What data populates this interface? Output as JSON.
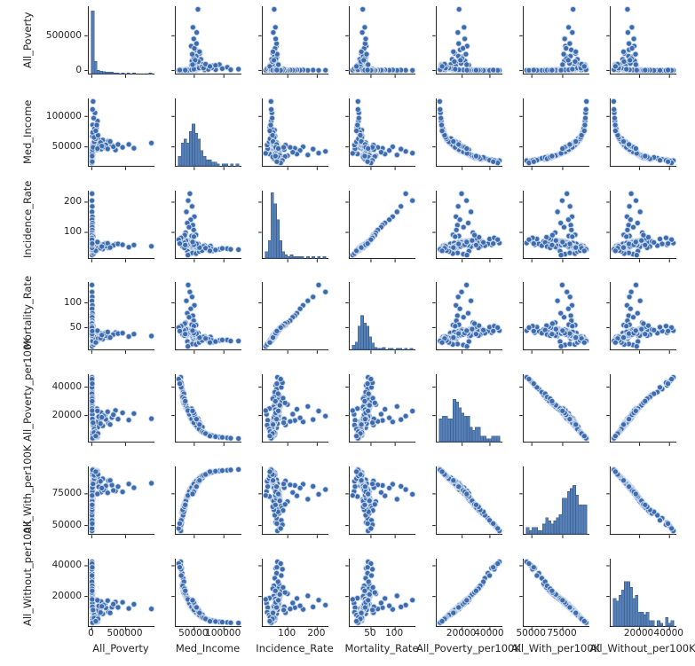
{
  "figure": {
    "background": "#ffffff",
    "kind": "seaborn pairplot"
  },
  "chart_data": {
    "type": "scatter",
    "subtype": "pairplot-matrix",
    "title": "",
    "diagonal": "histogram",
    "grid": "off",
    "legend": "none",
    "variables": [
      "All_Poverty",
      "Med_Income",
      "Incidence_Rate",
      "Mortality_Rate",
      "All_Poverty_per100K",
      "All_With_per100K",
      "All_Without_per100K"
    ],
    "axes": [
      {
        "name": "All_Poverty",
        "min": -45000,
        "max": 927000,
        "ticks": [
          0,
          500000
        ],
        "tick_labels": [
          "0",
          "500000"
        ]
      },
      {
        "name": "Med_Income",
        "min": 18800,
        "max": 129600,
        "ticks": [
          50000,
          100000
        ],
        "tick_labels": [
          "50000",
          "100000"
        ]
      },
      {
        "name": "Incidence_Rate",
        "min": 15,
        "max": 238,
        "ticks": [
          100,
          200
        ],
        "tick_labels": [
          "100",
          "200"
        ]
      },
      {
        "name": "Mortality_Rate",
        "min": 6,
        "max": 142,
        "ticks": [
          50,
          100
        ],
        "tick_labels": [
          "50",
          "100"
        ]
      },
      {
        "name": "All_Poverty_per100K",
        "min": 1700,
        "max": 49000,
        "ticks": [
          20000,
          40000
        ],
        "tick_labels": [
          "20000",
          "40000"
        ]
      },
      {
        "name": "All_With_per100K",
        "min": 43400,
        "max": 96600,
        "ticks": [
          50000,
          75000
        ],
        "tick_labels": [
          "50000",
          "75000"
        ]
      },
      {
        "name": "All_Without_per100K",
        "min": 700,
        "max": 44600,
        "ticks": [
          20000,
          40000
        ],
        "tick_labels": [
          "20000",
          "40000"
        ]
      }
    ],
    "hist_bins": 24,
    "hist_peak_fraction": [
      0.93,
      0.62,
      0.97,
      0.5,
      0.63,
      0.72,
      0.66
    ],
    "colors": {
      "point_fill": "#3d6cae",
      "point_edge": "#d3dfef",
      "hist_fill": "#567fb3",
      "hist_edge": "#3c619b",
      "spine": "#262626",
      "text": "#262626"
    },
    "columns_order": [
      "All_Poverty",
      "Med_Income",
      "Incidence_Rate",
      "Mortality_Rate",
      "All_Poverty_per100K",
      "All_With_per100K",
      "All_Without_per100K"
    ],
    "points": [
      [
        4200,
        31500,
        62,
        41,
        29800,
        64500,
        23400
      ],
      [
        6800,
        34200,
        55,
        36,
        27400,
        67800,
        21100
      ],
      [
        2900,
        33000,
        71,
        47,
        30900,
        63200,
        24800
      ],
      [
        9400,
        36500,
        49,
        33,
        25200,
        70400,
        19300
      ],
      [
        5300,
        30200,
        66,
        44,
        32600,
        61500,
        26200
      ],
      [
        12800,
        38800,
        58,
        38,
        23800,
        72600,
        18000
      ],
      [
        3600,
        32400,
        75,
        49,
        28700,
        66000,
        22300
      ],
      [
        7700,
        35600,
        52,
        34,
        26100,
        69200,
        20100
      ],
      [
        15200,
        37900,
        61,
        40,
        24600,
        71500,
        18800
      ],
      [
        4900,
        29800,
        68,
        45,
        33800,
        60200,
        27400
      ],
      [
        8200,
        44500,
        57,
        37,
        18900,
        77800,
        14600
      ],
      [
        13600,
        47200,
        50,
        32,
        16400,
        80600,
        12500
      ],
      [
        5400,
        42800,
        64,
        42,
        20700,
        75900,
        16100
      ],
      [
        18900,
        49600,
        46,
        29,
        15100,
        82300,
        11400
      ],
      [
        7100,
        41500,
        60,
        39,
        21800,
        74800,
        16900
      ],
      [
        23400,
        51300,
        53,
        34,
        14200,
        83700,
        10600
      ],
      [
        9800,
        45900,
        67,
        43,
        17600,
        79000,
        13700
      ],
      [
        16300,
        48400,
        44,
        28,
        15800,
        81400,
        12000
      ],
      [
        6200,
        43600,
        70,
        46,
        19800,
        76700,
        15300
      ],
      [
        11700,
        50500,
        48,
        31,
        14800,
        82900,
        11000
      ],
      [
        21500,
        54200,
        52,
        33,
        12600,
        84800,
        9800
      ],
      [
        34800,
        58700,
        46,
        28,
        10400,
        87100,
        7900
      ],
      [
        14200,
        52400,
        59,
        37,
        13800,
        83600,
        10900
      ],
      [
        46900,
        61800,
        42,
        26,
        9200,
        88500,
        7000
      ],
      [
        18600,
        53500,
        55,
        35,
        13100,
        84200,
        10300
      ],
      [
        57400,
        64300,
        48,
        30,
        8600,
        89300,
        6400
      ],
      [
        26300,
        56800,
        62,
        39,
        11500,
        86000,
        8800
      ],
      [
        39700,
        60200,
        44,
        27,
        9800,
        87800,
        7400
      ],
      [
        12400,
        51600,
        65,
        41,
        14300,
        83100,
        11300
      ],
      [
        30800,
        57500,
        50,
        31,
        10900,
        86600,
        8300
      ],
      [
        28400,
        68500,
        47,
        27,
        7800,
        90100,
        5600
      ],
      [
        52700,
        74200,
        42,
        23,
        6700,
        91200,
        4800
      ],
      [
        15800,
        66300,
        53,
        30,
        8400,
        89400,
        6200
      ],
      [
        68900,
        81600,
        39,
        21,
        5800,
        92300,
        4100
      ],
      [
        22600,
        70800,
        49,
        28,
        7200,
        90700,
        5200
      ],
      [
        84300,
        92400,
        44,
        24,
        4900,
        93100,
        3500
      ],
      [
        36500,
        77500,
        55,
        31,
        6200,
        91800,
        4400
      ],
      [
        12900,
        86200,
        41,
        22,
        5400,
        92700,
        3800
      ],
      [
        47200,
        105800,
        46,
        25,
        4400,
        93600,
        3100
      ],
      [
        19400,
        124600,
        43,
        23,
        3900,
        94200,
        2700
      ],
      [
        882000,
        56300,
        54,
        33,
        17800,
        83400,
        11900
      ],
      [
        623000,
        47800,
        58,
        37,
        21400,
        79800,
        14900
      ],
      [
        548000,
        54100,
        51,
        32,
        16900,
        82800,
        12200
      ],
      [
        351000,
        44900,
        61,
        40,
        23600,
        77200,
        16400
      ],
      [
        298000,
        52700,
        56,
        35,
        18600,
        81900,
        13000
      ],
      [
        247000,
        59400,
        49,
        30,
        14700,
        85400,
        9900
      ],
      [
        196000,
        48600,
        63,
        39,
        20300,
        78900,
        15100
      ],
      [
        162000,
        61200,
        45,
        27,
        12800,
        86900,
        8700
      ],
      [
        138000,
        46200,
        59,
        38,
        22100,
        76400,
        16700
      ],
      [
        118000,
        55800,
        52,
        33,
        16200,
        84100,
        11200
      ],
      [
        102000,
        50900,
        57,
        36,
        19200,
        80500,
        13800
      ],
      [
        88000,
        63700,
        47,
        29,
        11900,
        87600,
        8100
      ],
      [
        76000,
        45400,
        66,
        42,
        24800,
        75300,
        17800
      ],
      [
        67000,
        58100,
        50,
        31,
        15400,
        84700,
        10500
      ],
      [
        3800,
        42600,
        228,
        122,
        19600,
        78400,
        14400
      ],
      [
        2400,
        39800,
        205,
        136,
        23200,
        74600,
        17600
      ],
      [
        5600,
        46300,
        186,
        112,
        17200,
        80900,
        13200
      ],
      [
        1900,
        36700,
        168,
        104,
        26400,
        70800,
        20400
      ],
      [
        7300,
        50200,
        152,
        95,
        15600,
        82600,
        11600
      ],
      [
        3100,
        44100,
        142,
        88,
        18400,
        79600,
        13900
      ],
      [
        8900,
        38200,
        131,
        79,
        24400,
        73400,
        18700
      ],
      [
        2700,
        47700,
        124,
        74,
        16600,
        81600,
        12700
      ],
      [
        4600,
        41200,
        117,
        71,
        21000,
        76100,
        15800
      ],
      [
        6100,
        49100,
        108,
        64,
        15900,
        82100,
        11900
      ],
      [
        3400,
        35400,
        99,
        60,
        27800,
        68900,
        21800
      ],
      [
        9700,
        52900,
        92,
        55,
        13400,
        85100,
        9400
      ],
      [
        5800,
        37400,
        72,
        47,
        25600,
        71900,
        19600
      ],
      [
        17200,
        48900,
        54,
        34,
        16100,
        81100,
        12300
      ],
      [
        8600,
        40700,
        63,
        41,
        22400,
        75600,
        17100
      ],
      [
        27900,
        55400,
        47,
        29,
        12200,
        85700,
        9100
      ],
      [
        4100,
        33800,
        69,
        46,
        31400,
        62800,
        25400
      ],
      [
        13100,
        46800,
        51,
        33,
        17000,
        80200,
        13400
      ],
      [
        7900,
        43100,
        66,
        43,
        20100,
        77400,
        15500
      ],
      [
        33400,
        57900,
        45,
        28,
        10700,
        86400,
        8500
      ],
      [
        5100,
        36100,
        74,
        48,
        26800,
        70100,
        20700
      ],
      [
        20700,
        51900,
        49,
        31,
        14500,
        83300,
        10800
      ],
      [
        10400,
        44700,
        61,
        39,
        18200,
        78700,
        14100
      ],
      [
        42600,
        60700,
        43,
        26,
        9500,
        88100,
        7200
      ],
      [
        6600,
        38900,
        58,
        38,
        24100,
        73900,
        18300
      ],
      [
        15700,
        49900,
        56,
        35,
        15300,
        82500,
        11500
      ],
      [
        9100,
        42200,
        64,
        42,
        21600,
        75100,
        16600
      ],
      [
        37200,
        59100,
        48,
        30,
        10100,
        87400,
        7700
      ],
      [
        4400,
        34600,
        77,
        50,
        29300,
        65400,
        23000
      ],
      [
        24100,
        53800,
        53,
        33,
        13600,
        84500,
        10000
      ],
      [
        11300,
        45200,
        60,
        38,
        17400,
        79300,
        13500
      ],
      [
        50800,
        62500,
        41,
        25,
        8900,
        88900,
        6700
      ],
      [
        6900,
        40100,
        71,
        45,
        23000,
        74300,
        17900
      ],
      [
        19800,
        50700,
        52,
        32,
        14000,
        83900,
        10400
      ],
      [
        8300,
        43900,
        67,
        44,
        19400,
        77900,
        14800
      ],
      [
        29500,
        56300,
        46,
        28,
        11200,
        86200,
        8600
      ],
      [
        3900,
        32900,
        80,
        52,
        30400,
        63900,
        24300
      ],
      [
        16800,
        47500,
        55,
        36,
        15600,
        81900,
        11800
      ],
      [
        10900,
        44300,
        62,
        40,
        18000,
        78200,
        14300
      ],
      [
        45300,
        61400,
        44,
        27,
        9000,
        88700,
        6900
      ],
      [
        5500,
        35800,
        73,
        47,
        27200,
        69500,
        21300
      ],
      [
        22900,
        52300,
        50,
        31,
        13900,
        84000,
        10200
      ],
      [
        2100,
        38500,
        38,
        22,
        24900,
        72900,
        18900
      ],
      [
        31600,
        54900,
        35,
        19,
        12000,
        85900,
        9000
      ],
      [
        7400,
        41900,
        28,
        15,
        20900,
        76900,
        15600
      ],
      [
        13900,
        47100,
        32,
        17,
        16700,
        80800,
        12800
      ],
      [
        4700,
        39300,
        25,
        12,
        23500,
        73700,
        18100
      ],
      [
        25600,
        53100,
        30,
        16,
        13300,
        84900,
        9700
      ],
      [
        1500,
        31800,
        84,
        54,
        32200,
        61900,
        25900
      ],
      [
        36100,
        58300,
        37,
        20,
        10500,
        87000,
        7900
      ],
      [
        9500,
        45600,
        88,
        56,
        17700,
        79900,
        13300
      ],
      [
        54100,
        63200,
        40,
        24,
        8800,
        89100,
        6500
      ],
      [
        2600,
        34100,
        91,
        58,
        28900,
        66700,
        22600
      ],
      [
        18400,
        49300,
        86,
        53,
        15000,
        82800,
        11200
      ],
      [
        61500,
        71300,
        51,
        29,
        7000,
        90500,
        5000
      ],
      [
        8800,
        67400,
        57,
        32,
        7600,
        90000,
        5800
      ],
      [
        40200,
        79800,
        45,
        24,
        6000,
        92000,
        4300
      ],
      [
        14600,
        73600,
        50,
        27,
        6500,
        91500,
        4600
      ],
      [
        73800,
        85900,
        42,
        22,
        5200,
        92900,
        3700
      ],
      [
        26800,
        97300,
        47,
        25,
        4700,
        93400,
        3300
      ],
      [
        11200,
        111500,
        44,
        23,
        4100,
        93900,
        2900
      ],
      [
        33900,
        65600,
        54,
        31,
        8100,
        89700,
        6000
      ],
      [
        92000,
        69100,
        48,
        28,
        7400,
        90300,
        5400
      ],
      [
        58700,
        76400,
        39,
        20,
        5600,
        92500,
        3900
      ],
      [
        1800,
        30900,
        70,
        46,
        34600,
        59600,
        28300
      ],
      [
        2300,
        27400,
        65,
        44,
        46800,
        45800,
        42600
      ],
      [
        3200,
        28800,
        59,
        40,
        41200,
        52300,
        38400
      ],
      [
        1200,
        29500,
        62,
        43,
        38600,
        55700,
        35100
      ],
      [
        2800,
        31200,
        56,
        39,
        36400,
        58100,
        31900
      ],
      [
        1600,
        26900,
        73,
        49,
        44300,
        49200,
        40300
      ],
      [
        900,
        32600,
        67,
        45,
        35300,
        60800,
        29600
      ],
      [
        5200,
        30500,
        53,
        36,
        33000,
        62400,
        26900
      ],
      [
        2000,
        28100,
        78,
        51,
        39800,
        54100,
        33600
      ],
      [
        3500,
        33400,
        49,
        34,
        31800,
        64800,
        25100
      ],
      [
        1400,
        27800,
        82,
        53,
        43100,
        50600,
        37700
      ],
      [
        4300,
        34800,
        58,
        37,
        30100,
        66300,
        23700
      ],
      [
        207000,
        53400,
        55,
        34,
        17300,
        81300,
        12600
      ],
      [
        173000,
        49800,
        60,
        37,
        19900,
        78100,
        14500
      ],
      [
        129000,
        57200,
        48,
        29,
        14400,
        85000,
        9600
      ],
      [
        148000,
        51500,
        53,
        35,
        18800,
        79500,
        13600
      ],
      [
        235000,
        46700,
        64,
        41,
        22700,
        75800,
        17300
      ],
      [
        319000,
        50300,
        57,
        36,
        20600,
        77700,
        15000
      ],
      [
        271000,
        58900,
        50,
        30,
        13700,
        85600,
        9300
      ],
      [
        388000,
        53900,
        62,
        38,
        17500,
        80700,
        12900
      ],
      [
        456000,
        49200,
        59,
        39,
        21900,
        76600,
        16200
      ],
      [
        84000,
        47300,
        68,
        44,
        23300,
        74900,
        17500
      ],
      [
        2500,
        23800,
        76,
        50,
        45600,
        47700,
        41400
      ],
      [
        6400,
        25600,
        63,
        43,
        42400,
        51500,
        39000
      ]
    ]
  }
}
